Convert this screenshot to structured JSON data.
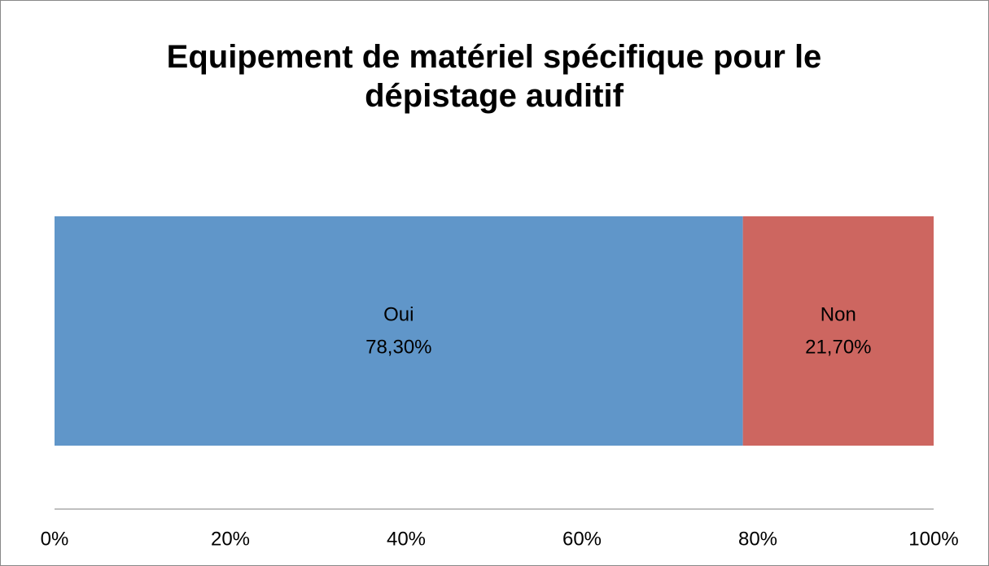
{
  "chart_data": {
    "type": "stacked_bar_horizontal",
    "title": "Equipement de matériel spécifique pour le dépistage auditif",
    "series": [
      {
        "name": "Oui",
        "color": "#6096c9",
        "values": [
          78.3
        ],
        "value_labels": [
          "78,30%"
        ]
      },
      {
        "name": "Non",
        "color": "#cd6660",
        "values": [
          21.7
        ],
        "value_labels": [
          "21,70%"
        ]
      }
    ],
    "xlim": [
      0,
      100
    ],
    "xticks": [
      {
        "value": 0,
        "label": "0%"
      },
      {
        "value": 20,
        "label": "20%"
      },
      {
        "value": 40,
        "label": "40%"
      },
      {
        "value": 60,
        "label": "60%"
      },
      {
        "value": 80,
        "label": "80%"
      },
      {
        "value": 100,
        "label": "100%"
      }
    ],
    "grid": false
  }
}
